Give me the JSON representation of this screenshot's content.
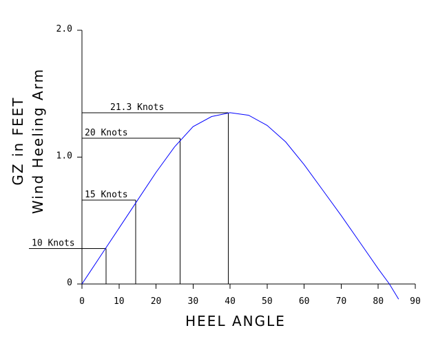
{
  "chart_data": {
    "type": "line",
    "xlabel": "HEEL ANGLE",
    "ylabel": [
      "GZ in FEET",
      "Wind Heeling Arm"
    ],
    "xlim": [
      0,
      90
    ],
    "ylim": [
      0,
      2.0
    ],
    "x_ticks": [
      0,
      10,
      20,
      30,
      40,
      50,
      60,
      70,
      80,
      90
    ],
    "y_tick_labels": [
      {
        "value": 0,
        "label": "0"
      },
      {
        "value": 1.0,
        "label": "1.0"
      },
      {
        "value": 2.0,
        "label": "2.0"
      }
    ],
    "grid": false,
    "series": [
      {
        "color": "#0000ff",
        "x": [
          0,
          5,
          10,
          15,
          20,
          25,
          30,
          35,
          40,
          45,
          50,
          55,
          60,
          65,
          70,
          75,
          80,
          83,
          85.5
        ],
        "y": [
          0,
          0.22,
          0.44,
          0.66,
          0.88,
          1.08,
          1.24,
          1.32,
          1.35,
          1.33,
          1.25,
          1.12,
          0.94,
          0.74,
          0.54,
          0.33,
          0.12,
          0.0,
          -0.12
        ]
      }
    ],
    "wind_levels": [
      {
        "label": "10 Knots",
        "gz": 0.28,
        "heel": 6.5
      },
      {
        "label": "15 Knots",
        "gz": 0.66,
        "heel": 14.5
      },
      {
        "label": "20 Knots",
        "gz": 1.15,
        "heel": 26.5
      },
      {
        "label": "21.3 Knots",
        "gz": 1.35,
        "heel": 39.5
      }
    ]
  }
}
